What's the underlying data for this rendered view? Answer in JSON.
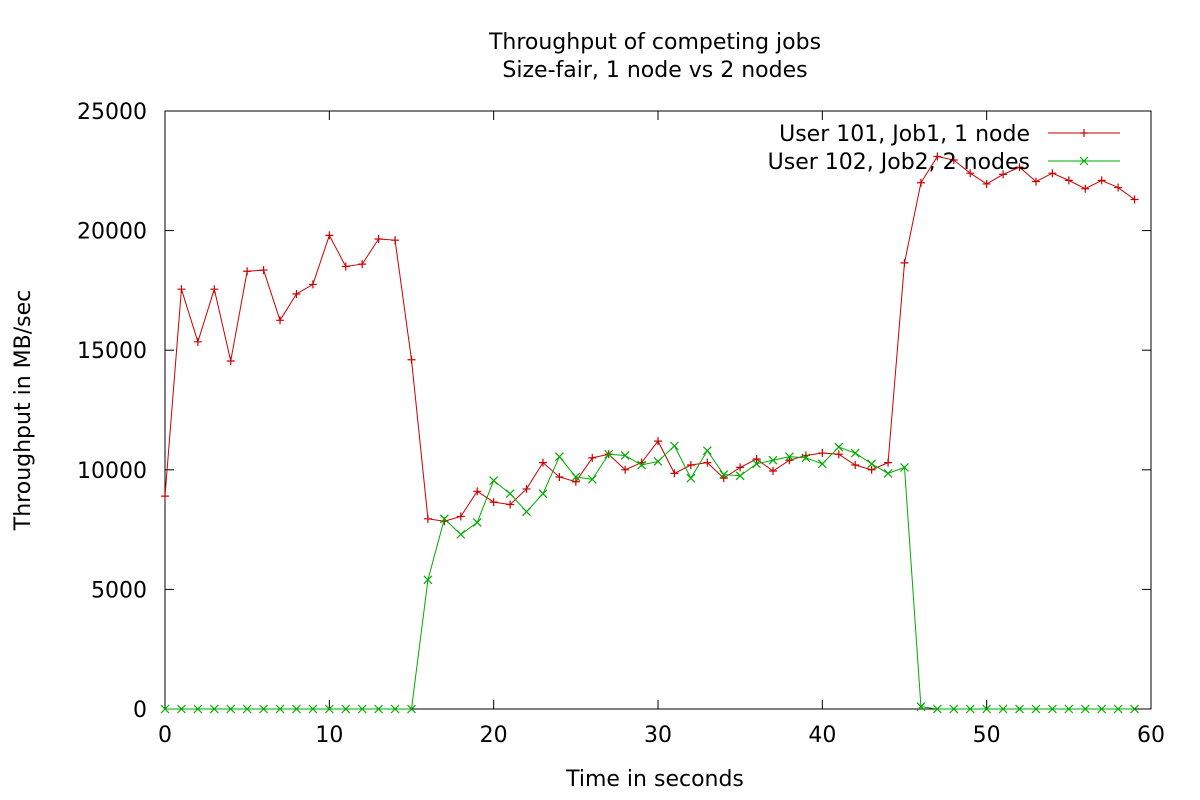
{
  "chart_data": {
    "type": "line",
    "title": "Throughput of competing jobs",
    "subtitle": "Size-fair, 1 node vs 2 nodes",
    "xlabel": "Time in seconds",
    "ylabel": "Throughput in MB/sec",
    "xlim": [
      0,
      60
    ],
    "ylim": [
      0,
      25000
    ],
    "xticks": [
      0,
      10,
      20,
      30,
      40,
      50,
      60
    ],
    "yticks": [
      0,
      5000,
      10000,
      15000,
      20000,
      25000
    ],
    "grid": false,
    "legend_position": "top-right",
    "x": [
      0,
      1,
      2,
      3,
      4,
      5,
      6,
      7,
      8,
      9,
      10,
      11,
      12,
      13,
      14,
      15,
      16,
      17,
      18,
      19,
      20,
      21,
      22,
      23,
      24,
      25,
      26,
      27,
      28,
      29,
      30,
      31,
      32,
      33,
      34,
      35,
      36,
      37,
      38,
      39,
      40,
      41,
      42,
      43,
      44,
      45,
      46,
      47,
      48,
      49,
      50,
      51,
      52,
      53,
      54,
      55,
      56,
      57,
      58,
      59
    ],
    "series": [
      {
        "name": "User 101, Job1, 1 node",
        "color": "#cc0000",
        "marker": "plus",
        "values": [
          8900,
          17550,
          15350,
          17550,
          14550,
          18300,
          18350,
          16250,
          17350,
          17750,
          19800,
          18500,
          18600,
          19650,
          19600,
          14600,
          7950,
          7850,
          8050,
          9100,
          8650,
          8550,
          9200,
          10300,
          9700,
          9500,
          10500,
          10650,
          10000,
          10300,
          11200,
          9850,
          10200,
          10300,
          9650,
          10100,
          10450,
          9950,
          10400,
          10600,
          10700,
          10650,
          10200,
          10000,
          10300,
          18650,
          22000,
          23100,
          22950,
          22400,
          21950,
          22350,
          22650,
          22050,
          22400,
          22100,
          21750,
          22100,
          21800,
          21300
        ]
      },
      {
        "name": "User 102, Job2, 2 nodes",
        "color": "#00aa00",
        "marker": "cross",
        "values": [
          0,
          0,
          0,
          0,
          0,
          0,
          0,
          0,
          0,
          0,
          0,
          0,
          0,
          0,
          0,
          0,
          5400,
          7950,
          7300,
          7800,
          9550,
          9000,
          8250,
          9000,
          10550,
          9700,
          9600,
          10650,
          10600,
          10200,
          10350,
          11000,
          9650,
          10800,
          9800,
          9750,
          10250,
          10400,
          10550,
          10500,
          10250,
          10950,
          10700,
          10250,
          9850,
          10100,
          100,
          0,
          0,
          0,
          0,
          0,
          0,
          0,
          0,
          0,
          0,
          0,
          0,
          0
        ]
      }
    ]
  }
}
